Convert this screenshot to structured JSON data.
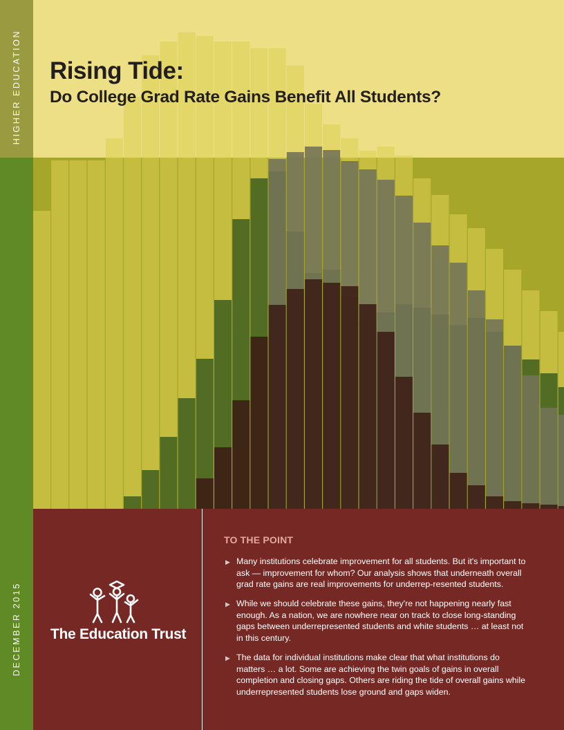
{
  "sidebar": {
    "section_label": "HIGHER EDUCATION",
    "date_label": "DECEMBER 2015"
  },
  "header": {
    "title": "Rising Tide:",
    "subtitle": "Do College Grad Rate Gains Benefit All Students?"
  },
  "organization": {
    "name": "The Education Trust",
    "logo": "education-trust-logo-icon"
  },
  "summary": {
    "heading": "TO THE POINT",
    "bullet_icon": "triangle-bullet-icon",
    "points": [
      "Many institutions celebrate improvement for all students. But it's important to ask — improvement for whom? Our analysis shows that underneath overall grad rate gains are real improvements for underrep-resented students.",
      "While we should celebrate these gains, they're not happening nearly fast enough. As a nation, we are nowhere near on track to close long-standing gaps between underrepresented students and white students … at least not in this century.",
      "The data for individual institutions make clear that what institutions do matters … a lot. Some are achieving the twin goals of gains in overall completion and closing gaps. Others are riding the tide of overall gains while underrepresented students lose ground and gaps widen."
    ]
  },
  "colors": {
    "sidebar_top": "#9a9a41",
    "sidebar_bottom": "#5f8a26",
    "maroon_panel": "#6e1e20",
    "heading_accent": "#e3a9a0",
    "title_text": "#231f20"
  }
}
